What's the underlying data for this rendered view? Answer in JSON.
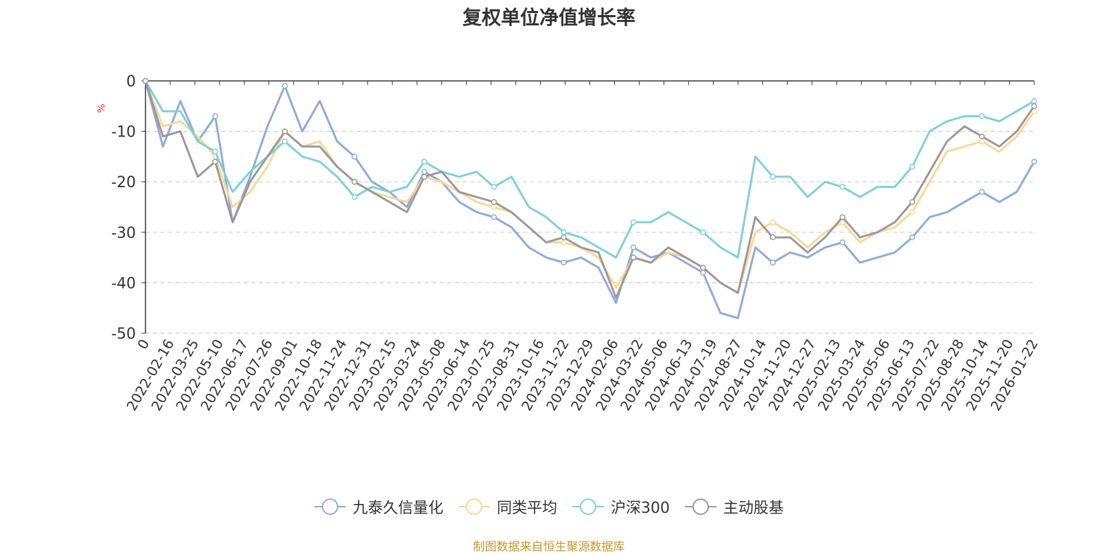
{
  "chart_data": {
    "type": "line",
    "title": "复权单位净值增长率",
    "ylabel": "%",
    "ylim": [
      -50,
      0
    ],
    "yticks": [
      0,
      -10,
      -20,
      -30,
      -40,
      -50
    ],
    "xticks": [
      "0",
      "2022-02-16",
      "2022-03-25",
      "2022-05-10",
      "2022-06-17",
      "2022-07-26",
      "2022-09-01",
      "2022-10-18",
      "2022-11-24",
      "2022-12-31",
      "2023-02-15",
      "2023-03-24",
      "2023-05-08",
      "2023-06-14",
      "2023-07-25",
      "2023-08-31",
      "2023-10-16",
      "2023-11-22",
      "2023-12-29",
      "2024-02-06",
      "2024-03-22",
      "2024-05-06",
      "2024-06-13",
      "2024-07-19",
      "2024-08-27",
      "2024-10-14",
      "2024-11-20",
      "2024-12-27",
      "2025-02-13",
      "2025-03-24",
      "2025-05-06",
      "2025-06-13",
      "2025-07-22",
      "2025-08-28",
      "2025-10-14",
      "2025-11-20",
      "2026-01-22"
    ],
    "grid": true,
    "legend_position": "bottom",
    "series": [
      {
        "name": "九泰久信量化",
        "color": "#8eaadb",
        "values": [
          0,
          -13,
          -4,
          -12,
          -7,
          -28,
          -19,
          -9,
          -1,
          -10,
          -4,
          -12,
          -15,
          -20,
          -22,
          -25,
          -18,
          -20,
          -24,
          -26,
          -27,
          -29,
          -33,
          -35,
          -36,
          -35,
          -37,
          -44,
          -33,
          -35,
          -34,
          -36,
          -38,
          -46,
          -47,
          -33,
          -36,
          -34,
          -35,
          -33,
          -32,
          -36,
          -35,
          -34,
          -31,
          -27,
          -26,
          -24,
          -22,
          -24,
          -22,
          -16
        ]
      },
      {
        "name": "同类平均",
        "color": "#f9d796",
        "values": [
          0,
          -9,
          -8,
          -11,
          -15,
          -25,
          -22,
          -17,
          -10,
          -13,
          -12,
          -17,
          -20,
          -22,
          -23,
          -24,
          -19,
          -20,
          -22,
          -24,
          -25,
          -26,
          -29,
          -32,
          -32,
          -33,
          -35,
          -41,
          -35,
          -36,
          -34,
          -35,
          -37,
          -40,
          -42,
          -30,
          -28,
          -30,
          -33,
          -30,
          -28,
          -32,
          -30,
          -29,
          -26,
          -20,
          -14,
          -13,
          -12,
          -14,
          -11,
          -6
        ]
      },
      {
        "name": "沪深300",
        "color": "#7fd0d6",
        "values": [
          0,
          -6,
          -6,
          -12,
          -14,
          -22,
          -18,
          -15,
          -12,
          -15,
          -16,
          -19,
          -23,
          -21,
          -22,
          -21,
          -16,
          -18,
          -19,
          -18,
          -21,
          -19,
          -25,
          -27,
          -30,
          -31,
          -33,
          -35,
          -28,
          -28,
          -26,
          -28,
          -30,
          -33,
          -35,
          -15,
          -19,
          -19,
          -23,
          -20,
          -21,
          -23,
          -21,
          -21,
          -17,
          -10,
          -8,
          -7,
          -7,
          -8,
          -6,
          -4
        ]
      },
      {
        "name": "主动股基",
        "color": "#999999",
        "values": [
          0,
          -11,
          -10,
          -19,
          -16,
          -28,
          -20,
          -15,
          -10,
          -13,
          -13,
          -17,
          -20,
          -22,
          -24,
          -26,
          -19,
          -18,
          -22,
          -23,
          -24,
          -26,
          -29,
          -32,
          -31,
          -33,
          -34,
          -43,
          -35,
          -36,
          -33,
          -35,
          -37,
          -40,
          -42,
          -27,
          -31,
          -31,
          -34,
          -31,
          -27,
          -31,
          -30,
          -28,
          -24,
          -18,
          -12,
          -9,
          -11,
          -13,
          -10,
          -5
        ]
      }
    ]
  },
  "source": "制图数据来自恒生聚源数据库"
}
